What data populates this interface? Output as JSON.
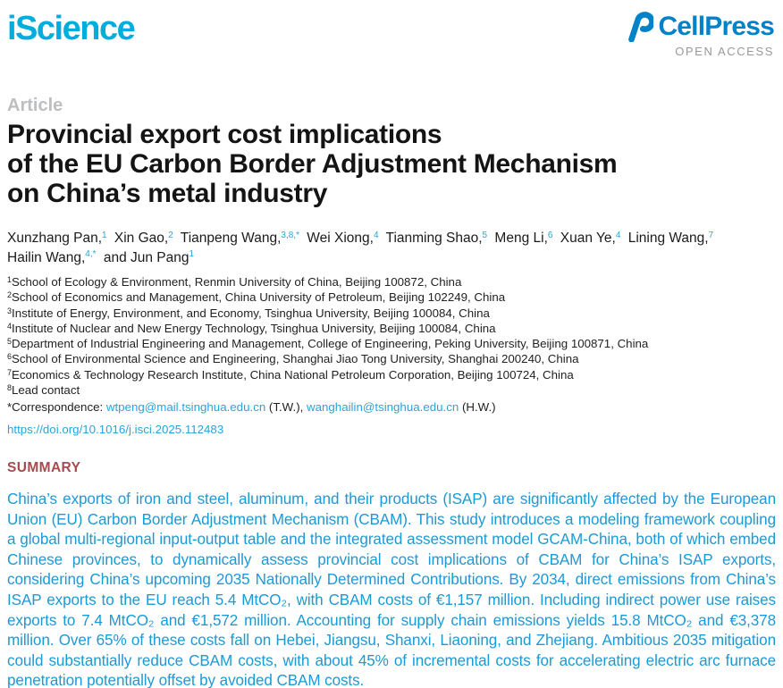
{
  "journal": {
    "name": "iScience"
  },
  "publisher": {
    "name": "CellPress",
    "tagline": "OPEN ACCESS"
  },
  "article": {
    "kicker": "Article",
    "title": "Provincial export cost implications\nof the EU Carbon Border Adjustment Mechanism\non China’s metal industry"
  },
  "authors": {
    "lines": [
      [
        {
          "name": "Xunzhang Pan,",
          "sup": "1"
        },
        {
          "name": "Xin Gao,",
          "sup": "2"
        },
        {
          "name": "Tianpeng Wang,",
          "sup": "3,8,*"
        },
        {
          "name": "Wei Xiong,",
          "sup": "4"
        },
        {
          "name": "Tianming Shao,",
          "sup": "5"
        },
        {
          "name": "Meng Li,",
          "sup": "6"
        },
        {
          "name": "Xuan Ye,",
          "sup": "4"
        },
        {
          "name": "Lining Wang,",
          "sup": "7"
        }
      ],
      [
        {
          "name": "Hailin Wang,",
          "sup": "4,*"
        },
        {
          "name": "and Jun Pang",
          "sup": "1"
        }
      ]
    ]
  },
  "affiliations": [
    {
      "sup": "1",
      "text": "School of Ecology & Environment, Renmin University of China, Beijing 100872, China"
    },
    {
      "sup": "2",
      "text": "School of Economics and Management, China University of Petroleum, Beijing 102249, China"
    },
    {
      "sup": "3",
      "text": "Institute of Energy, Environment, and Economy, Tsinghua University, Beijing 100084, China"
    },
    {
      "sup": "4",
      "text": "Institute of Nuclear and New Energy Technology, Tsinghua University, Beijing 100084, China"
    },
    {
      "sup": "5",
      "text": "Department of Industrial Engineering and Management, College of Engineering, Peking University, Beijing 100871, China"
    },
    {
      "sup": "6",
      "text": "School of Environmental Science and Engineering, Shanghai Jiao Tong University, Shanghai 200240, China"
    },
    {
      "sup": "7",
      "text": "Economics & Technology Research Institute, China National Petroleum Corporation, Beijing 100724, China"
    },
    {
      "sup": "8",
      "text": "Lead contact"
    }
  ],
  "correspondence": {
    "segments": [
      {
        "text": "*Correspondence: ",
        "link": false
      },
      {
        "text": "wtpeng@mail.tsinghua.edu.cn",
        "link": true
      },
      {
        "text": " (T.W.), ",
        "link": false
      },
      {
        "text": "wanghailin@tsinghua.edu.cn",
        "link": true
      },
      {
        "text": " (H.W.)",
        "link": false
      }
    ],
    "doi": "https://doi.org/10.1016/j.isci.2025.112483"
  },
  "summary": {
    "heading": "SUMMARY",
    "body": "China’s exports of iron and steel, aluminum, and their products (ISAP) are significantly affected by the European Union (EU) Carbon Border Adjustment Mechanism (CBAM). This study introduces a modeling framework coupling a global multi-regional input-output table and the integrated assessment model GCAM-China, both of which embed Chinese provinces, to dynamically assess provincial cost implications of CBAM for China’s ISAP exports, considering China’s upcoming 2035 Nationally Determined Contributions. By 2034, direct emissions from China’s ISAP exports to the EU reach 5.4 MtCO₂, with CBAM costs of €1,157 million. Including indirect power use raises exports to 7.4 MtCO₂ and €1,572 million. Accounting for supply chain emissions yields 15.8 MtCO₂ and €3,378 million. Over 65% of these costs fall on Hebei, Jiangsu, Shanxi, Liaoning, and Zhejiang. Ambitious 2035 mitigation could substantially reduce CBAM costs, with about 45% of incremental costs for accelerating electric arc furnace penetration potentially offset by avoided CBAM costs."
  },
  "colors": {
    "brand_cyan": "#00addc",
    "cellpress_blue": "#0082c8",
    "link_blue": "#2aa4da",
    "summary_heading_red": "#a84a4e",
    "summary_text_blue": "#1c9ad6",
    "kicker_gray": "#bcbec0",
    "open_access_gray": "#97999c"
  }
}
